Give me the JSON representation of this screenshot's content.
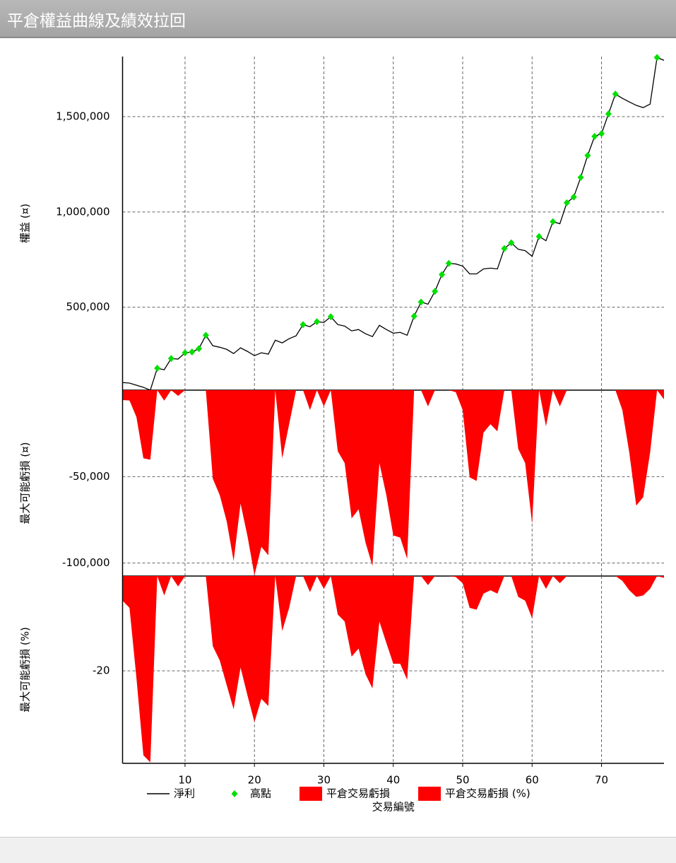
{
  "chart_data": [
    {
      "type": "line",
      "title": "平倉權益曲線及績效拉回",
      "ylabel": "權益 (¤)",
      "x": [
        1,
        2,
        3,
        4,
        5,
        6,
        7,
        8,
        9,
        10,
        11,
        12,
        13,
        14,
        15,
        16,
        17,
        18,
        19,
        20,
        21,
        22,
        23,
        24,
        25,
        26,
        27,
        28,
        29,
        30,
        31,
        32,
        33,
        34,
        35,
        36,
        37,
        38,
        39,
        40,
        41,
        42,
        43,
        44,
        45,
        46,
        47,
        48,
        49,
        50,
        51,
        52,
        53,
        54,
        55,
        56,
        57,
        58,
        59,
        60,
        61,
        62,
        63,
        64,
        65,
        66,
        67,
        68,
        69,
        70,
        71,
        72,
        73,
        74,
        75,
        76,
        77,
        78,
        79
      ],
      "xlim": [
        1,
        79
      ],
      "xticks": [
        10,
        20,
        30,
        40,
        50,
        60,
        70
      ],
      "ylim": [
        65000,
        1815000
      ],
      "yticks": [
        {
          "value": 500000,
          "label": "500,000"
        },
        {
          "value": 1000000,
          "label": "1,000,000"
        },
        {
          "value": 1500000,
          "label": "1,500,000"
        }
      ],
      "grid": true,
      "series": [
        {
          "name": "淨利",
          "color": "#000000",
          "style": "line",
          "values": [
            105000,
            102000,
            91000,
            80000,
            65000,
            180000,
            172000,
            231000,
            228000,
            261000,
            265000,
            283000,
            353000,
            298000,
            290000,
            279000,
            257000,
            287000,
            268000,
            246000,
            261000,
            254000,
            327000,
            313000,
            335000,
            350000,
            409000,
            398000,
            424000,
            420000,
            450000,
            409000,
            401000,
            376000,
            383000,
            361000,
            346000,
            405000,
            383000,
            364000,
            368000,
            353000,
            453000,
            527000,
            516000,
            583000,
            671000,
            730000,
            727000,
            716000,
            675000,
            675000,
            701000,
            705000,
            701000,
            808000,
            838000,
            804000,
            797000,
            767000,
            871000,
            849000,
            949000,
            938000,
            1048000,
            1078000,
            1181000,
            1296000,
            1396000,
            1411000,
            1514000,
            1618000,
            1596000,
            1577000,
            1559000,
            1547000,
            1566000,
            1810000,
            1795000
          ]
        },
        {
          "name": "高點",
          "color": "#00e000",
          "style": "marker",
          "values": [
            null,
            null,
            null,
            null,
            null,
            180000,
            null,
            231000,
            null,
            261000,
            265000,
            283000,
            353000,
            null,
            null,
            null,
            null,
            null,
            null,
            null,
            null,
            null,
            null,
            null,
            null,
            null,
            409000,
            null,
            424000,
            null,
            450000,
            null,
            null,
            null,
            null,
            null,
            null,
            null,
            null,
            null,
            null,
            null,
            453000,
            527000,
            null,
            583000,
            671000,
            730000,
            null,
            null,
            null,
            null,
            null,
            null,
            null,
            808000,
            838000,
            null,
            null,
            null,
            871000,
            null,
            949000,
            null,
            1048000,
            1078000,
            1181000,
            1296000,
            1396000,
            1411000,
            1514000,
            1618000,
            null,
            null,
            null,
            null,
            null,
            1810000,
            null
          ]
        }
      ]
    },
    {
      "type": "area",
      "ylabel": "最大可能虧損 (¤)",
      "x": [
        1,
        2,
        3,
        4,
        5,
        6,
        7,
        8,
        9,
        10,
        11,
        12,
        13,
        14,
        15,
        16,
        17,
        18,
        19,
        20,
        21,
        22,
        23,
        24,
        25,
        26,
        27,
        28,
        29,
        30,
        31,
        32,
        33,
        34,
        35,
        36,
        37,
        38,
        39,
        40,
        41,
        42,
        43,
        44,
        45,
        46,
        47,
        48,
        49,
        50,
        51,
        52,
        53,
        54,
        55,
        56,
        57,
        58,
        59,
        60,
        61,
        62,
        63,
        64,
        65,
        66,
        67,
        68,
        69,
        70,
        71,
        72,
        73,
        74,
        75,
        76,
        77,
        78,
        79
      ],
      "xlim": [
        1,
        79
      ],
      "xticks": [
        10,
        20,
        30,
        40,
        50,
        60,
        70
      ],
      "ylim": [
        -107500,
        0
      ],
      "yticks": [
        {
          "value": -100000,
          "label": "-100,000"
        },
        {
          "value": -50000,
          "label": "-50,000"
        }
      ],
      "grid": true,
      "series": [
        {
          "name": "平倉交易虧損",
          "color": "#ff0000",
          "values": [
            -5700,
            -6000,
            -15600,
            -39400,
            -40200,
            0,
            -6100,
            0,
            -3300,
            0,
            0,
            0,
            0,
            -51200,
            -60700,
            -75800,
            -98800,
            -65600,
            -84500,
            -107000,
            -90600,
            -95500,
            0,
            -39400,
            -19700,
            0,
            0,
            -11500,
            0,
            -9400,
            0,
            -35300,
            -42200,
            -74200,
            -68900,
            -88100,
            -101700,
            -42200,
            -60700,
            -84000,
            -85300,
            -97600,
            0,
            0,
            -9400,
            0,
            0,
            0,
            -1200,
            -11500,
            -50400,
            -52500,
            -24600,
            -19700,
            -23800,
            0,
            0,
            -34000,
            -42200,
            -77100,
            0,
            -20900,
            0,
            -9400,
            0,
            0,
            0,
            0,
            0,
            0,
            0,
            0,
            -11500,
            -36100,
            -66800,
            -61900,
            -36100,
            0,
            -5300
          ]
        }
      ]
    },
    {
      "type": "area",
      "ylabel": "最大可能虧損 (%)",
      "xlabel": "交易編號",
      "x": [
        1,
        2,
        3,
        4,
        5,
        6,
        7,
        8,
        9,
        10,
        11,
        12,
        13,
        14,
        15,
        16,
        17,
        18,
        19,
        20,
        21,
        22,
        23,
        24,
        25,
        26,
        27,
        28,
        29,
        30,
        31,
        32,
        33,
        34,
        35,
        36,
        37,
        38,
        39,
        40,
        41,
        42,
        43,
        44,
        45,
        46,
        47,
        48,
        49,
        50,
        51,
        52,
        53,
        54,
        55,
        56,
        57,
        58,
        59,
        60,
        61,
        62,
        63,
        64,
        65,
        66,
        67,
        68,
        69,
        70,
        71,
        72,
        73,
        74,
        75,
        76,
        77,
        78,
        79
      ],
      "xlim": [
        1,
        79
      ],
      "xticks": [
        10,
        20,
        30,
        40,
        50,
        60,
        70
      ],
      "ylim": [
        -39.5,
        0
      ],
      "yticks": [
        -20
      ],
      "grid": true,
      "series": [
        {
          "name": "平倉交易虧損 (%)",
          "color": "#ff0000",
          "values": [
            -5.2,
            -6.7,
            -21.5,
            -37.8,
            -39.3,
            0,
            -4.1,
            0,
            -2.2,
            0,
            0,
            0,
            0,
            -14.8,
            -17.8,
            -23,
            -28.1,
            -19.3,
            -25.2,
            -30.8,
            -25.9,
            -27.4,
            0,
            -11.6,
            -6.7,
            0,
            0,
            -3.4,
            0,
            -2.7,
            0,
            -8.1,
            -9.6,
            -17,
            -15.3,
            -20.7,
            -23.7,
            -9.6,
            -14.1,
            -18.5,
            -18.5,
            -21.9,
            0,
            0,
            -1.9,
            0,
            0,
            0,
            -0.2,
            -1.5,
            -6.7,
            -7.1,
            -3.7,
            -3,
            -3.7,
            0,
            0,
            -4.4,
            -5.2,
            -8.9,
            0,
            -2.7,
            0,
            -1.5,
            0,
            0,
            0,
            0,
            0,
            0,
            0,
            0,
            -1,
            -3,
            -4.4,
            -4.1,
            -2.7,
            0,
            -0.4
          ]
        }
      ]
    }
  ]
}
